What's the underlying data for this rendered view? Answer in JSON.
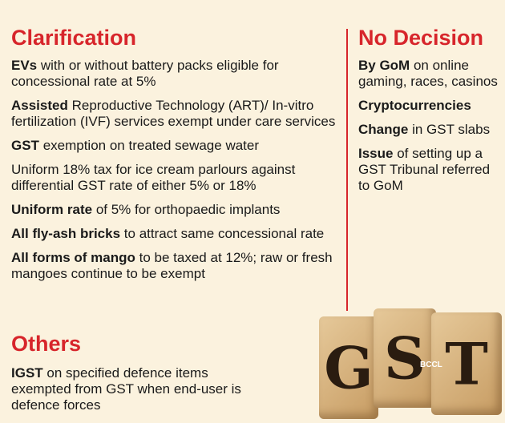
{
  "clarification": {
    "title": "Clarification",
    "items": [
      {
        "bold": "EVs",
        "text": "with or without battery packs eligible for concessional rate at 5%"
      },
      {
        "bold": "Assisted",
        "text": "Reproductive Technology (ART)/ In-vitro fertilization (IVF) services exempt under care services"
      },
      {
        "bold": "GST",
        "text": "exemption on treated sewage water"
      },
      {
        "text": "Uniform 18% tax for ice cream parlours against differential GST rate of either 5% or 18%"
      },
      {
        "bold": "Uniform rate",
        "text": "of 5% for orthopaedic implants"
      },
      {
        "bold": "All fly-ash bricks",
        "text": "to attract same concessional rate"
      },
      {
        "bold": "All forms of mango",
        "text": "to be taxed at 12%; raw or fresh mangoes continue to be exempt"
      }
    ]
  },
  "no_decision": {
    "title": "No Decision",
    "items": [
      {
        "bold": "By GoM",
        "text": "on online gaming, races, casinos"
      },
      {
        "bold": "Cryptocurrencies"
      },
      {
        "bold": "Change",
        "text": "in GST slabs"
      },
      {
        "bold": "Issue",
        "text": "of setting up a GST Tribunal referred to GoM"
      }
    ]
  },
  "others": {
    "title": "Others",
    "items": [
      {
        "bold": "IGST",
        "text": "on specified defence items exempted from GST when end-user is defence forces"
      }
    ]
  },
  "image": {
    "letters": [
      "G",
      "S",
      "T"
    ],
    "credit": "BCCL"
  }
}
